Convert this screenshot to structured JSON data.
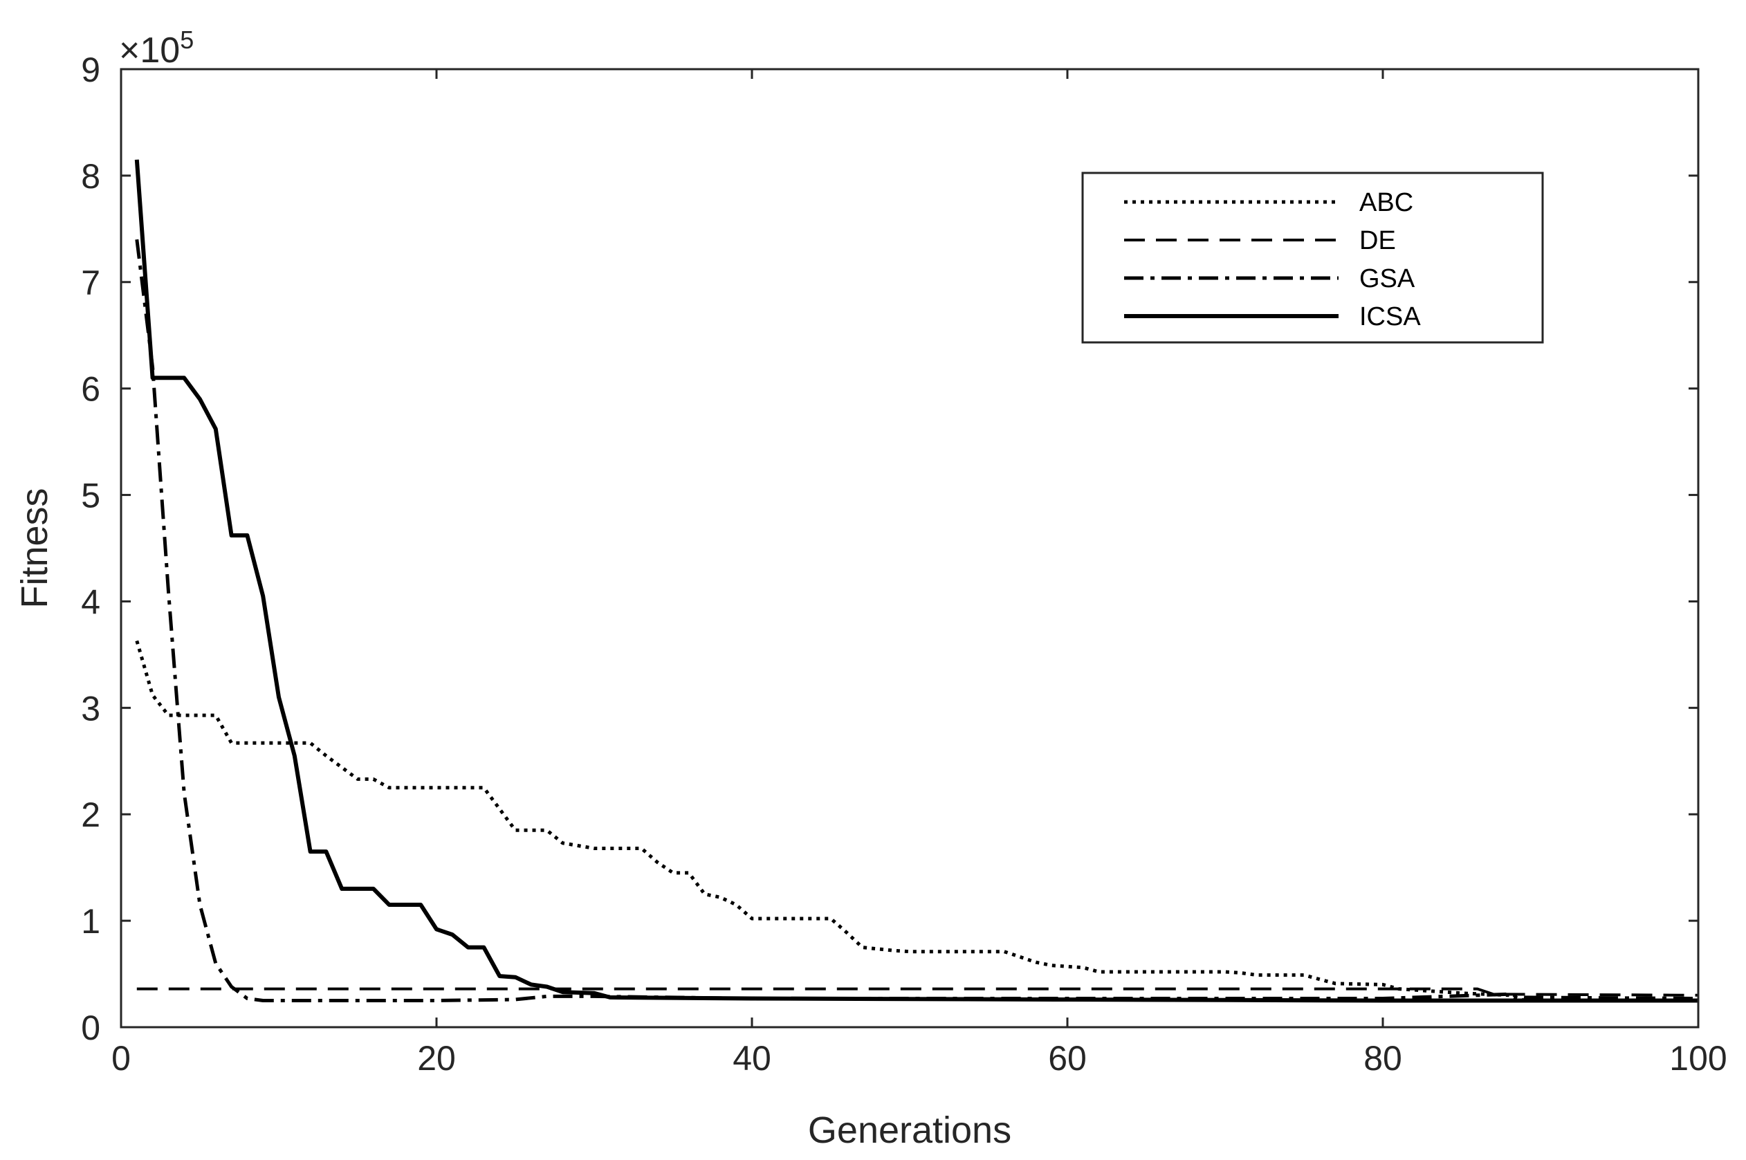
{
  "chart_data": {
    "type": "line",
    "title": "",
    "xlabel": "Generations",
    "ylabel": "Fitness",
    "y_exponent_label": {
      "base": "×10",
      "power": "5"
    },
    "xlim": [
      0,
      100
    ],
    "ylim": [
      0,
      9
    ],
    "x_ticks": [
      0,
      20,
      40,
      60,
      80,
      100
    ],
    "y_ticks": [
      0,
      1,
      2,
      3,
      4,
      5,
      6,
      7,
      8,
      9
    ],
    "grid": false,
    "legend_position": "top-right",
    "series": [
      {
        "name": "ABC",
        "style": "dotted",
        "x": [
          1,
          2,
          3,
          4,
          6,
          7,
          12,
          13,
          15,
          16,
          17,
          18,
          23,
          24,
          25,
          27,
          28,
          30,
          33,
          34,
          35,
          36,
          37,
          38,
          39,
          40,
          45,
          46,
          47,
          49,
          50,
          56,
          57,
          58,
          59,
          61,
          62,
          70,
          71,
          72,
          75,
          76,
          77,
          80,
          81,
          85,
          88,
          89,
          100
        ],
        "values": [
          3.63,
          3.12,
          2.93,
          2.93,
          2.93,
          2.67,
          2.67,
          2.55,
          2.33,
          2.33,
          2.25,
          2.25,
          2.25,
          2.05,
          1.85,
          1.85,
          1.73,
          1.68,
          1.68,
          1.55,
          1.45,
          1.45,
          1.25,
          1.22,
          1.15,
          1.02,
          1.02,
          0.89,
          0.75,
          0.72,
          0.71,
          0.71,
          0.66,
          0.61,
          0.58,
          0.56,
          0.52,
          0.52,
          0.51,
          0.49,
          0.49,
          0.45,
          0.41,
          0.4,
          0.36,
          0.32,
          0.3,
          0.25,
          0.25
        ]
      },
      {
        "name": "DE",
        "style": "dashed",
        "x": [
          1,
          86,
          87,
          100
        ],
        "values": [
          0.36,
          0.36,
          0.31,
          0.3
        ]
      },
      {
        "name": "GSA",
        "style": "dashdot",
        "x": [
          1,
          2,
          3,
          4,
          5,
          6,
          7,
          8,
          9,
          10,
          15,
          20,
          25,
          27,
          30,
          40,
          60,
          80,
          88,
          89,
          100
        ],
        "values": [
          7.4,
          6.2,
          4.1,
          2.2,
          1.15,
          0.6,
          0.38,
          0.27,
          0.25,
          0.25,
          0.25,
          0.25,
          0.26,
          0.29,
          0.29,
          0.27,
          0.27,
          0.27,
          0.31,
          0.28,
          0.27
        ]
      },
      {
        "name": "ICSA",
        "style": "solid",
        "x": [
          1,
          2,
          3,
          4,
          5,
          6,
          7,
          8,
          9,
          10,
          11,
          12,
          13,
          14,
          15,
          16,
          17,
          18,
          19,
          20,
          21,
          22,
          23,
          24,
          25,
          26,
          27,
          28,
          30,
          31,
          40,
          60,
          80,
          100
        ],
        "values": [
          8.15,
          6.1,
          6.1,
          6.1,
          5.9,
          5.62,
          4.62,
          4.62,
          4.05,
          3.1,
          2.55,
          1.65,
          1.65,
          1.3,
          1.3,
          1.3,
          1.15,
          1.15,
          1.15,
          0.92,
          0.87,
          0.75,
          0.75,
          0.48,
          0.47,
          0.4,
          0.38,
          0.33,
          0.32,
          0.28,
          0.27,
          0.26,
          0.25,
          0.25
        ]
      }
    ]
  }
}
